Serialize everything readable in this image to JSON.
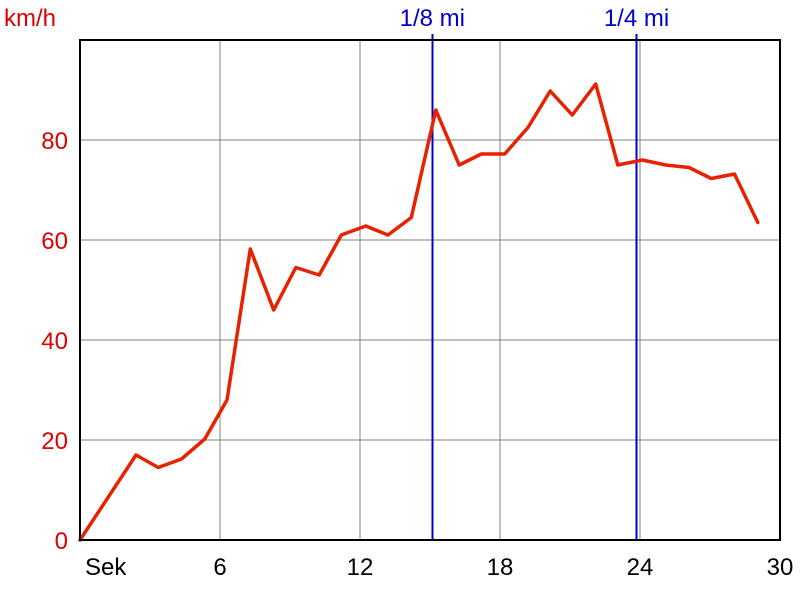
{
  "colors": {
    "series": "#e62200",
    "y_labels": "#dd0000",
    "markers": "#0000cc",
    "grid": "#808080",
    "axis": "#000000",
    "x_labels": "#000000"
  },
  "chart_data": {
    "type": "line",
    "ylabel": "km/h",
    "xlabel": "Sek",
    "xlim": [
      0,
      30
    ],
    "ylim": [
      0,
      100
    ],
    "grid": true,
    "x_ticks": [
      {
        "value": 0,
        "label": "Sek"
      },
      {
        "value": 6,
        "label": "6"
      },
      {
        "value": 12,
        "label": "12"
      },
      {
        "value": 18,
        "label": "18"
      },
      {
        "value": 24,
        "label": "24"
      },
      {
        "value": 30,
        "label": "30"
      }
    ],
    "y_ticks": [
      {
        "value": 0,
        "label": "0"
      },
      {
        "value": 20,
        "label": "20"
      },
      {
        "value": 40,
        "label": "40"
      },
      {
        "value": 60,
        "label": "60"
      },
      {
        "value": 80,
        "label": "80"
      }
    ],
    "markers": [
      {
        "label": "1/8 mi",
        "x": 15.1
      },
      {
        "label": "1/4 mi",
        "x": 23.85
      }
    ],
    "series": [
      {
        "x": [
          0,
          2.4,
          3.35,
          4.35,
          5.35,
          6.3,
          7.3,
          8.3,
          9.25,
          10.25,
          11.2,
          12.25,
          13.2,
          14.2,
          15.25,
          16.25,
          17.2,
          18.2,
          19.2,
          20.15,
          21.1,
          22.1,
          23.05,
          24.1,
          25.1,
          26.1,
          27.05,
          28.05,
          29.05
        ],
        "y": [
          0,
          17,
          14.5,
          16.2,
          20.2,
          28,
          58.2,
          46,
          54.5,
          53,
          61,
          62.8,
          61,
          64.5,
          86,
          75,
          77.2,
          77.2,
          82.5,
          89.8,
          85,
          91.2,
          75,
          76,
          75,
          74.5,
          72.3,
          73.2,
          63.5
        ]
      }
    ]
  }
}
